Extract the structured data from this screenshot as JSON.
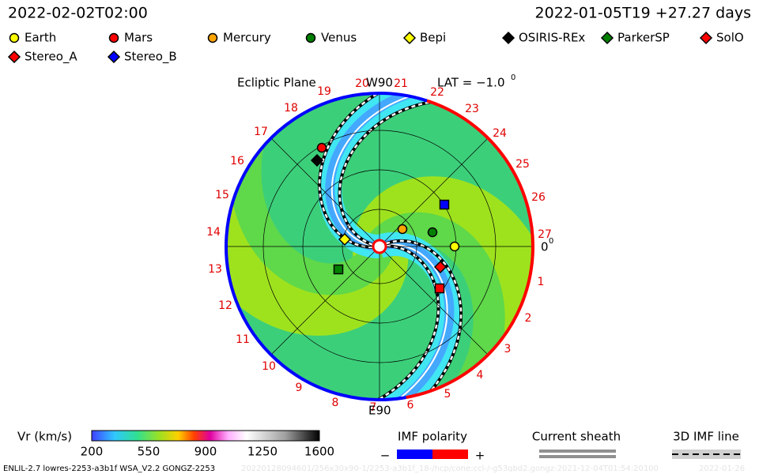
{
  "header": {
    "time": "2022-02-02T02:00",
    "run": "2022-01-05T19 +27.27 days"
  },
  "legend": [
    {
      "label": "Earth",
      "shape": "circle",
      "color": "#ffff00"
    },
    {
      "label": "Mars",
      "shape": "circle",
      "color": "#ff0000"
    },
    {
      "label": "Mercury",
      "shape": "circle",
      "color": "#ffa500"
    },
    {
      "label": "Venus",
      "shape": "circle",
      "color": "#008000"
    },
    {
      "label": "Bepi",
      "shape": "diamond",
      "color": "#ffff00"
    },
    {
      "label": "OSIRIS-REx",
      "shape": "diamond",
      "color": "#000000"
    },
    {
      "label": "ParkerSP",
      "shape": "diamond",
      "color": "#008000"
    },
    {
      "label": "SolO",
      "shape": "diamond",
      "color": "#ff0000"
    },
    {
      "label": "Stereo_A",
      "shape": "diamond",
      "color": "#ff0000"
    },
    {
      "label": "Stereo_B",
      "shape": "diamond",
      "color": "#0000ff"
    }
  ],
  "plot": {
    "plane": "Ecliptic Plane",
    "top": "W90",
    "lat": "LAT = −1.0",
    "lat_sup": "0",
    "bottom": "E90",
    "right": "0",
    "right_sup": "0",
    "rim": [
      "20",
      "21",
      "22",
      "23",
      "24",
      "25",
      "26",
      "27",
      "1",
      "2",
      "3",
      "4",
      "5",
      "6",
      "7",
      "8",
      "9",
      "10",
      "11",
      "12",
      "13",
      "14",
      "15",
      "16",
      "17",
      "18",
      "19"
    ]
  },
  "colorbar": {
    "title": "Vr (km/s)",
    "ticks": [
      "200",
      "550",
      "900",
      "1250",
      "1600"
    ]
  },
  "imf": {
    "title": "IMF polarity",
    "minus": "−",
    "plus": "+"
  },
  "sheath": {
    "title": "Current sheath"
  },
  "imf_line": {
    "title": "3D IMF line"
  },
  "footer": {
    "run": "ENLIL-2.7 lowres-2253-a3b1f WSA_V2.2 GONGZ-2253",
    "faint": "20220128094601/256x30x90-1/2253-a3b1f_18-/hcp/cone:ccl-/-g53qbd2.gongz-2021-12-04T01:54:20100",
    "date": "2022-01-26"
  }
}
